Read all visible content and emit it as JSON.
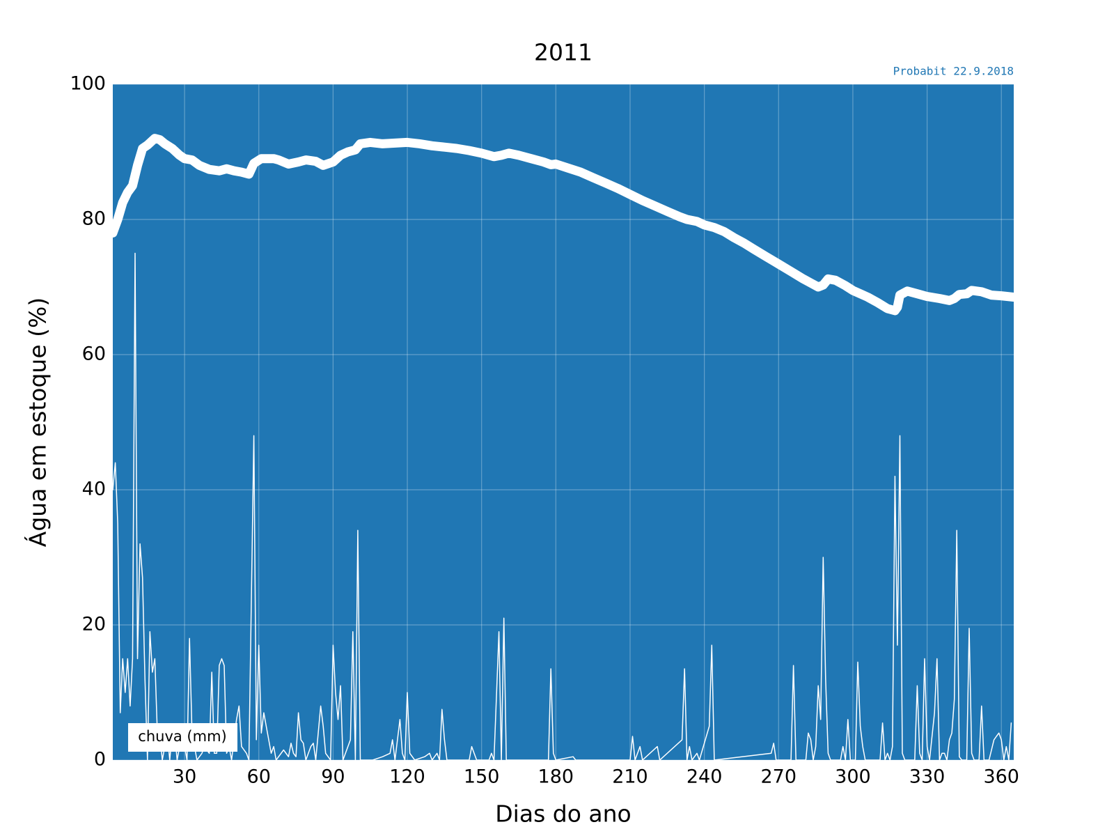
{
  "chart_data": {
    "type": "line",
    "title": "2011",
    "annotation": "Probabit 22.9.2018",
    "xlabel": "Dias do ano",
    "ylabel": "Água em estoque (%)",
    "background": "#2077b4",
    "grid": true,
    "legend": "lower left",
    "xlim": [
      1,
      365
    ],
    "xticks": [
      30,
      60,
      90,
      120,
      150,
      180,
      210,
      240,
      270,
      300,
      330,
      360
    ],
    "ylim": [
      0,
      100
    ],
    "yticks": [
      0,
      20,
      40,
      60,
      80,
      100
    ],
    "series": [
      {
        "color": "#ffffff",
        "x": [
          1,
          3,
          5,
          7,
          9,
          11,
          13,
          15,
          18,
          20,
          22,
          25,
          28,
          30,
          33,
          36,
          40,
          44,
          47,
          50,
          53,
          56,
          57,
          58,
          61,
          66,
          68,
          72,
          76,
          79,
          83,
          86,
          90,
          93,
          96,
          99,
          101,
          105,
          110,
          115,
          120,
          125,
          130,
          135,
          140,
          145,
          150,
          155,
          158,
          161,
          165,
          170,
          175,
          178,
          180,
          185,
          190,
          195,
          200,
          205,
          210,
          215,
          220,
          225,
          230,
          233,
          237,
          240,
          244,
          248,
          252,
          256,
          260,
          265,
          270,
          275,
          280,
          283,
          286,
          288,
          290,
          293,
          297,
          300,
          303,
          306,
          310,
          314,
          317,
          318,
          319,
          322,
          326,
          330,
          335,
          339,
          341,
          343,
          346,
          348,
          352,
          356,
          360,
          365
        ],
        "values": [
          78,
          80,
          82.5,
          84,
          85,
          88,
          90.5,
          91,
          92,
          91.8,
          91.2,
          90.5,
          89.5,
          89,
          88.8,
          88,
          87.4,
          87.2,
          87.5,
          87.2,
          87,
          86.7,
          87.5,
          88.3,
          89,
          89,
          88.8,
          88.2,
          88.5,
          88.8,
          88.6,
          88,
          88.5,
          89.5,
          90,
          90.3,
          91.2,
          91.4,
          91.2,
          91.3,
          91.4,
          91.2,
          90.9,
          90.7,
          90.5,
          90.2,
          89.8,
          89.3,
          89.5,
          89.8,
          89.5,
          89,
          88.5,
          88.1,
          88.2,
          87.6,
          87,
          86.2,
          85.4,
          84.6,
          83.7,
          82.8,
          82,
          81.2,
          80.4,
          80,
          79.7,
          79.2,
          78.8,
          78.2,
          77.3,
          76.5,
          75.6,
          74.5,
          73.4,
          72.3,
          71.2,
          70.6,
          70,
          70.3,
          71.2,
          71,
          70.2,
          69.5,
          69,
          68.5,
          67.7,
          66.8,
          66.5,
          67,
          68.8,
          69.4,
          69,
          68.6,
          68.3,
          68,
          68.3,
          68.9,
          69,
          69.5,
          69.3,
          68.8,
          68.7,
          68.5
        ]
      },
      {
        "name": "chuva (mm)",
        "color": "#ffffff",
        "x": [
          1,
          2,
          3,
          4,
          5,
          6,
          7,
          8,
          9,
          10,
          11,
          12,
          13,
          14,
          15,
          16,
          17,
          18,
          19,
          20,
          21,
          22,
          23,
          24,
          25,
          26,
          27,
          28,
          29,
          31,
          32,
          33,
          35,
          37,
          38,
          40,
          41,
          42,
          43,
          44,
          45,
          46,
          47,
          48,
          49,
          51,
          52,
          53,
          55,
          56,
          58,
          59,
          60,
          61,
          62,
          63,
          65,
          66,
          67,
          70,
          72,
          73,
          74,
          75,
          76,
          77,
          78,
          79,
          81,
          82,
          83,
          85,
          86,
          87,
          89,
          90,
          91,
          92,
          93,
          94,
          97,
          98,
          99,
          100,
          101,
          106,
          110,
          113,
          114,
          115,
          117,
          118,
          119,
          120,
          121,
          123,
          127,
          129,
          130,
          132,
          133,
          134,
          135,
          136,
          145,
          146,
          147,
          148,
          153,
          154,
          155,
          157,
          158,
          159,
          160,
          177,
          178,
          179,
          180,
          187,
          188,
          210,
          211,
          212,
          214,
          215,
          221,
          222,
          231,
          232,
          233,
          234,
          235,
          237,
          238,
          242,
          243,
          244,
          267,
          268,
          269,
          275,
          276,
          277,
          281,
          282,
          283,
          284,
          285,
          286,
          287,
          288,
          289,
          290,
          291,
          295,
          296,
          297,
          298,
          299,
          301,
          302,
          303,
          304,
          305,
          311,
          312,
          313,
          314,
          315,
          316,
          317,
          318,
          319,
          320,
          321,
          325,
          326,
          327,
          328,
          329,
          330,
          331,
          333,
          334,
          335,
          336,
          337,
          338,
          339,
          340,
          341,
          342,
          343,
          344,
          346,
          347,
          348,
          349,
          351,
          352,
          353,
          355,
          357,
          358,
          359,
          360,
          361,
          362,
          363,
          364
        ],
        "values": [
          40,
          44,
          35,
          7,
          15,
          10,
          15,
          8,
          15,
          75,
          15,
          32,
          27,
          12,
          0,
          19,
          13,
          15,
          4,
          4,
          0,
          2,
          4,
          0,
          4,
          4,
          0,
          2,
          4,
          0,
          18,
          4,
          0,
          1,
          2,
          1,
          13,
          1,
          1,
          14,
          15,
          14,
          1,
          2,
          0,
          6,
          8,
          2,
          1,
          0,
          48,
          3,
          17,
          4,
          7,
          5,
          1,
          2,
          0,
          1.5,
          0.5,
          2.5,
          1,
          0.5,
          7,
          3,
          2.5,
          0,
          2,
          2.5,
          0,
          8,
          5,
          1,
          0,
          17,
          10,
          6,
          11,
          0,
          3,
          19,
          0,
          34,
          0,
          0,
          0.5,
          1,
          3,
          0,
          6,
          1,
          0,
          10,
          1,
          0,
          0.5,
          1,
          0,
          1,
          0,
          7.5,
          3,
          0,
          0,
          2,
          1,
          0,
          0,
          1,
          0,
          19,
          0,
          21,
          0,
          0,
          13.5,
          1,
          0,
          0.5,
          0,
          0,
          3.5,
          0,
          2,
          0,
          2,
          0,
          3,
          13.5,
          0,
          2,
          0,
          1,
          0,
          5,
          17,
          0,
          1,
          2.5,
          0,
          0,
          14,
          0,
          0,
          4,
          3,
          0,
          2,
          11,
          6,
          30,
          12,
          1,
          0,
          0,
          2,
          0,
          6,
          0,
          0,
          14.5,
          5,
          2,
          0,
          0,
          5.5,
          0,
          1,
          0,
          2,
          42,
          17,
          48,
          1,
          0,
          0,
          11,
          1,
          0,
          15,
          2,
          0,
          7,
          15,
          0,
          1,
          1,
          0,
          3,
          4,
          9,
          34,
          0.5,
          0,
          0,
          19.5,
          1,
          0,
          0,
          8,
          0,
          0,
          3,
          3.5,
          4,
          3,
          0,
          2,
          0,
          5.5
        ]
      }
    ]
  }
}
